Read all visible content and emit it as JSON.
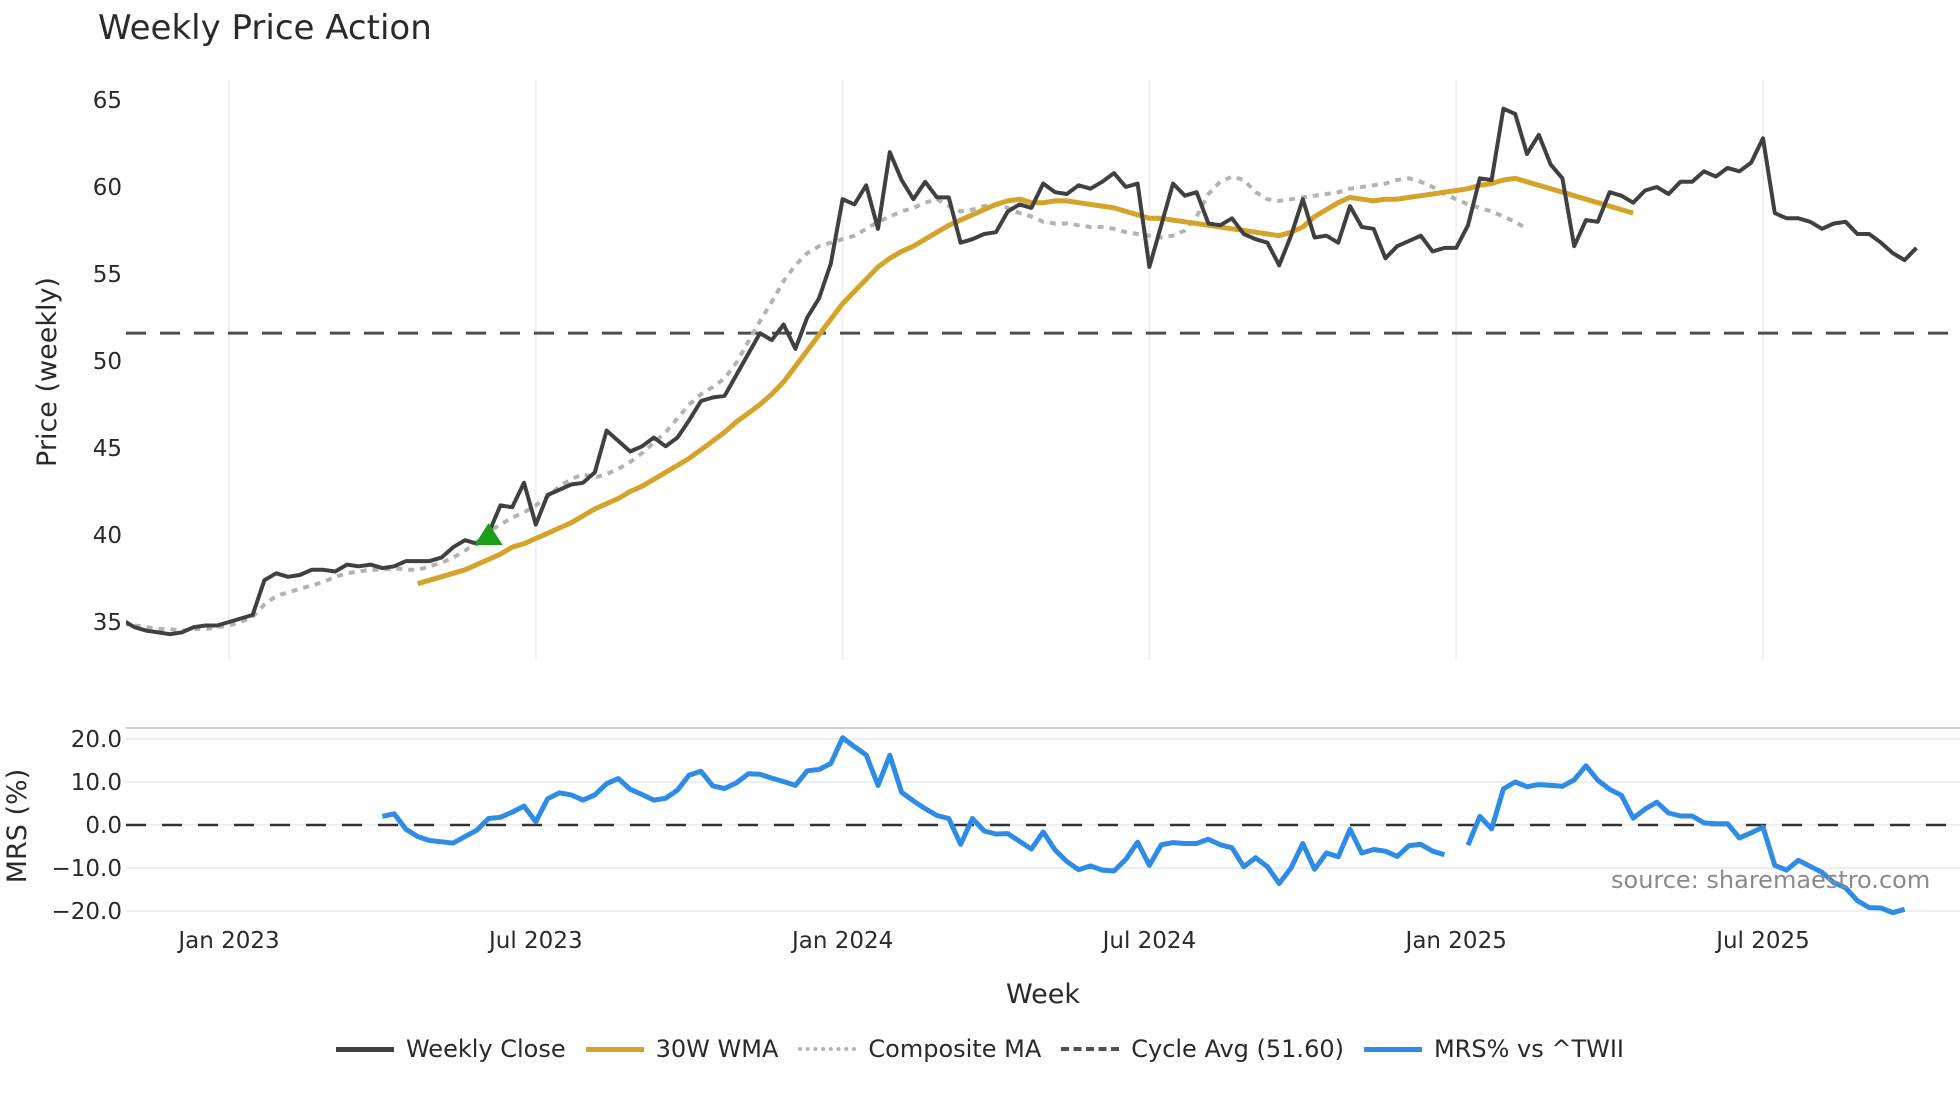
{
  "title": "Weekly Price Action",
  "source_note": "source: sharemaestro.com",
  "x_axis": {
    "label": "Week",
    "ticks": [
      {
        "label": "Jan 2023",
        "week": 13
      },
      {
        "label": "Jul 2023",
        "week": 39
      },
      {
        "label": "Jan 2024",
        "week": 65
      },
      {
        "label": "Jul 2024",
        "week": 91
      },
      {
        "label": "Jan 2025",
        "week": 117
      },
      {
        "label": "Jul 2025",
        "week": 143
      }
    ]
  },
  "price_axis": {
    "label": "Price (weekly)",
    "ticks": [
      "35",
      "40",
      "45",
      "50",
      "55",
      "60",
      "65"
    ],
    "tick_values": [
      35,
      40,
      45,
      50,
      55,
      60,
      65
    ]
  },
  "mrs_axis": {
    "label": "MRS (%)",
    "ticks": [
      "20.0",
      "10.0",
      "0.0",
      "−10.0",
      "−20.0"
    ],
    "tick_values": [
      20,
      10,
      0,
      -10,
      -20
    ]
  },
  "legend": [
    {
      "label": "Weekly Close",
      "color": "#404040",
      "style": "solid"
    },
    {
      "label": "30W WMA",
      "color": "#d4a32a",
      "style": "solid"
    },
    {
      "label": "Composite MA",
      "color": "#b3b3b3",
      "style": "dotted"
    },
    {
      "label": "Cycle Avg (51.60)",
      "color": "#505050",
      "style": "dashed"
    },
    {
      "label": "MRS% vs ^TWII",
      "color": "#2e8ce6",
      "style": "solid"
    }
  ],
  "chart_data": [
    {
      "type": "line",
      "title": "Weekly Price Action",
      "xlabel": "Week",
      "ylabel": "Price (weekly)",
      "ylim": [
        33.5,
        66
      ],
      "x_start_week": 0,
      "note": "week 0 ≈ late Sep 2022; Jan 2023 ≈ week 13",
      "series": [
        {
          "name": "Weekly Close",
          "start": 0,
          "values": [
            34.6,
            35.1,
            34.9,
            34.8,
            35.1,
            34.7,
            34.5,
            34.4,
            34.3,
            34.4,
            34.7,
            34.8,
            34.8,
            35.0,
            35.2,
            35.4,
            37.4,
            37.8,
            37.6,
            37.7,
            38.0,
            38.0,
            37.9,
            38.3,
            38.2,
            38.3,
            38.1,
            38.2,
            38.5,
            38.5,
            38.5,
            38.7,
            39.3,
            39.7,
            39.5,
            40.1,
            41.7,
            41.6,
            43.0,
            40.6,
            42.3,
            42.6,
            42.9,
            43.0,
            43.6,
            46.0,
            45.4,
            44.8,
            45.1,
            45.6,
            45.1,
            45.6,
            46.6,
            47.7,
            47.9,
            48.0,
            49.2,
            50.4,
            51.6,
            51.2,
            52.1,
            50.7,
            52.5,
            53.6,
            55.6,
            59.3,
            59.0,
            60.1,
            57.6,
            62.0,
            60.4,
            59.3,
            60.3,
            59.4,
            59.4,
            56.8,
            57.0,
            57.3,
            57.4,
            58.6,
            59.0,
            58.8,
            60.2,
            59.7,
            59.6,
            60.1,
            59.9,
            60.3,
            60.8,
            60.0,
            60.2,
            55.4,
            57.8,
            60.2,
            59.5,
            59.7,
            57.9,
            57.8,
            58.2,
            57.3,
            57.0,
            56.8,
            55.5,
            57.2,
            59.3,
            57.1,
            57.2,
            56.8,
            58.9,
            57.7,
            57.6,
            55.9,
            56.6,
            56.9,
            57.2,
            56.3,
            56.5,
            56.5,
            57.8,
            60.5,
            60.4,
            64.5,
            64.2,
            61.9,
            63.0,
            61.3,
            60.5,
            56.6,
            58.1,
            58.0,
            59.7,
            59.5,
            59.1,
            59.8,
            60.0,
            59.6,
            60.3,
            60.3,
            60.9,
            60.6,
            61.1,
            60.9,
            61.4,
            62.8,
            58.5,
            58.2,
            58.2,
            58.0,
            57.6,
            57.9,
            58.0,
            57.3,
            57.3,
            56.8,
            56.2,
            55.8,
            56.5
          ]
        },
        {
          "name": "30W WMA",
          "start": 29,
          "values": [
            37.2,
            37.4,
            37.6,
            37.8,
            38.0,
            38.3,
            38.6,
            38.9,
            39.3,
            39.5,
            39.8,
            40.1,
            40.4,
            40.7,
            41.1,
            41.5,
            41.8,
            42.1,
            42.5,
            42.8,
            43.2,
            43.6,
            44.0,
            44.4,
            44.9,
            45.4,
            45.9,
            46.5,
            47.0,
            47.5,
            48.1,
            48.8,
            49.7,
            50.6,
            51.5,
            52.4,
            53.3,
            54.0,
            54.7,
            55.4,
            55.9,
            56.3,
            56.6,
            57.0,
            57.4,
            57.8,
            58.1,
            58.4,
            58.7,
            59.0,
            59.2,
            59.3,
            59.1,
            59.1,
            59.2,
            59.2,
            59.1,
            59.0,
            58.9,
            58.8,
            58.6,
            58.4,
            58.2,
            58.2,
            58.1,
            58.0,
            57.9,
            57.8,
            57.7,
            57.6,
            57.5,
            57.4,
            57.3,
            57.2,
            57.4,
            57.7,
            58.3,
            58.7,
            59.1,
            59.4,
            59.3,
            59.2,
            59.3,
            59.3,
            59.4,
            59.5,
            59.6,
            59.7,
            59.8,
            59.9,
            60.1,
            60.2,
            60.4,
            60.5,
            60.3,
            60.1,
            59.9,
            59.7,
            59.5,
            59.3,
            59.1,
            58.9,
            58.7,
            58.5
          ]
        },
        {
          "name": "Composite MA",
          "start": 3,
          "values": [
            35.0,
            34.9,
            34.8,
            34.7,
            34.6,
            34.6,
            34.5,
            34.6,
            34.6,
            34.7,
            34.8,
            35.0,
            35.3,
            36.0,
            36.5,
            36.7,
            36.9,
            37.1,
            37.3,
            37.6,
            37.8,
            37.9,
            38.0,
            38.0,
            38.1,
            38.0,
            38.0,
            38.2,
            38.4,
            38.7,
            39.1,
            39.6,
            40.2,
            40.6,
            41.0,
            41.3,
            41.7,
            42.2,
            42.8,
            43.2,
            43.5,
            43.3,
            43.5,
            43.8,
            44.2,
            44.7,
            45.3,
            45.9,
            46.7,
            47.5,
            48.1,
            48.5,
            49.0,
            49.9,
            51.1,
            52.3,
            53.4,
            54.6,
            55.5,
            56.2,
            56.6,
            56.8,
            57.0,
            57.2,
            57.6,
            58.0,
            58.3,
            58.6,
            58.8,
            59.1,
            59.3,
            58.9,
            58.6,
            58.7,
            58.9,
            59.0,
            58.8,
            58.5,
            58.3,
            58.0,
            57.9,
            57.9,
            57.8,
            57.7,
            57.7,
            57.6,
            57.4,
            57.3,
            57.2,
            57.1,
            57.2,
            57.5,
            58.3,
            59.6,
            60.3,
            60.6,
            60.4,
            59.7,
            59.3,
            59.2,
            59.3,
            59.4,
            59.5,
            59.6,
            59.7,
            59.9,
            60.0,
            60.1,
            60.2,
            60.4,
            60.5,
            60.3,
            60.0,
            59.6,
            59.3,
            59.0,
            58.8,
            58.6,
            58.3,
            58.0,
            57.6
          ]
        },
        {
          "name": "Cycle Avg (51.60)",
          "constant": 51.6
        }
      ],
      "markers": [
        {
          "type": "triangle-up",
          "color": "#1a9e1a",
          "week": 35,
          "value": 40.0
        }
      ]
    },
    {
      "type": "line",
      "xlabel": "Week",
      "ylabel": "MRS (%)",
      "ylim": [
        -22.5,
        22.5
      ],
      "series": [
        {
          "name": "MRS% vs ^TWII",
          "start": 26,
          "segments": [
            {
              "start": 26,
              "values": [
                2.0,
                2.6,
                -1.0,
                -2.7,
                -3.6,
                -3.9,
                -4.2,
                -2.7,
                -1.2,
                1.5,
                1.8,
                3.0,
                4.4,
                0.8,
                6.1,
                7.5,
                7.0,
                5.8,
                7.0,
                9.6,
                10.8,
                8.3,
                7.1,
                5.8,
                6.2,
                8.1,
                11.6,
                12.5,
                9.1,
                8.5,
                9.8,
                11.9,
                11.8,
                10.9,
                10.1,
                9.2,
                12.6,
                12.9,
                14.3,
                20.3,
                18.2,
                16.3,
                9.2,
                16.2,
                7.6,
                5.6,
                3.8,
                2.2,
                1.5,
                -4.5,
                1.5,
                -1.4,
                -2.1,
                -2.0,
                -3.8,
                -5.6,
                -1.6,
                -5.8,
                -8.5,
                -10.4,
                -9.5,
                -10.5,
                -10.7,
                -8.0,
                -4.0,
                -9.4,
                -4.6,
                -4.1,
                -4.3,
                -4.3,
                -3.3,
                -4.6,
                -5.3,
                -9.7,
                -7.6,
                -9.7,
                -13.6,
                -10.0,
                -4.3,
                -10.3,
                -6.5,
                -7.4,
                -1.0,
                -6.5,
                -5.7,
                -6.1,
                -7.3,
                -4.8,
                -4.5,
                -6.1,
                -6.9
              ]
            },
            {
              "start": 118,
              "values": [
                -4.7,
                2.0,
                -0.9,
                8.4,
                10.0,
                8.9,
                9.4,
                9.2,
                9.0,
                10.5,
                13.8,
                10.4,
                8.3,
                6.9,
                1.6,
                3.7,
                5.3,
                2.8,
                2.1,
                2.1,
                0.5,
                0.3,
                0.3,
                -3.0,
                -1.8,
                -0.5,
                -9.4,
                -10.5,
                -8.2,
                -9.6,
                -11.0,
                -13.4,
                -14.6,
                -17.6,
                -19.2,
                -19.3,
                -20.4,
                -19.6
              ]
            }
          ]
        },
        {
          "name": "Zero line",
          "constant": 0.0
        }
      ]
    }
  ]
}
